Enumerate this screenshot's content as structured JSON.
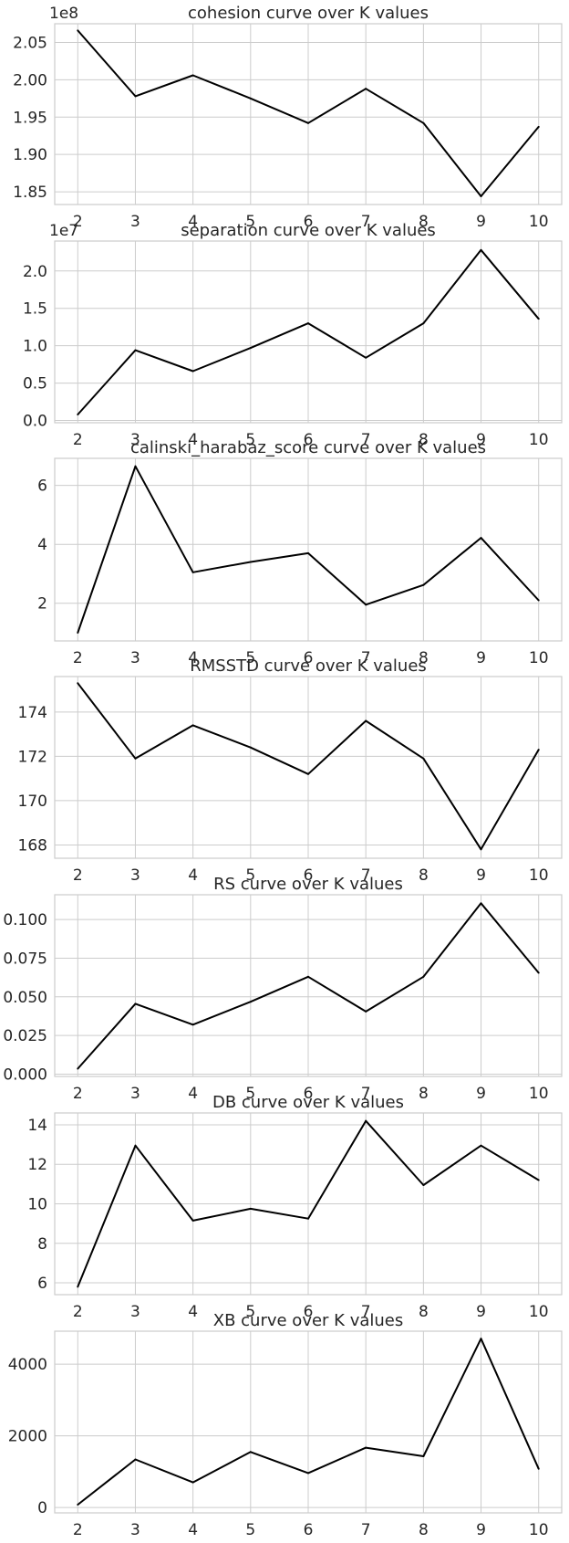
{
  "chart_data": [
    {
      "type": "line",
      "title": "cohesion curve over K values",
      "offset_label": "1e8",
      "x": [
        2,
        3,
        4,
        5,
        6,
        7,
        8,
        9,
        10
      ],
      "series": [
        {
          "values": [
            2.066,
            1.978,
            2.006,
            1.975,
            1.942,
            1.988,
            1.942,
            1.844,
            1.937
          ]
        }
      ],
      "xticks": [
        2,
        3,
        4,
        5,
        6,
        7,
        8,
        9,
        10
      ],
      "yticks": [
        1.85,
        1.9,
        1.95,
        2.0,
        2.05
      ],
      "ytick_labels": [
        "1.85",
        "1.90",
        "1.95",
        "2.00",
        "2.05"
      ],
      "ylim": [
        1.833,
        2.075
      ],
      "xlim": [
        1.6,
        10.4
      ],
      "grid": true
    },
    {
      "type": "line",
      "title": "separation curve over K values",
      "offset_label": "1e7",
      "x": [
        2,
        3,
        4,
        5,
        6,
        7,
        8,
        9,
        10
      ],
      "series": [
        {
          "values": [
            0.08,
            0.94,
            0.66,
            0.97,
            1.3,
            0.84,
            1.3,
            2.28,
            1.36
          ]
        }
      ],
      "xticks": [
        2,
        3,
        4,
        5,
        6,
        7,
        8,
        9,
        10
      ],
      "yticks": [
        0.0,
        0.5,
        1.0,
        1.5,
        2.0
      ],
      "ytick_labels": [
        "0.0",
        "0.5",
        "1.0",
        "1.5",
        "2.0"
      ],
      "ylim": [
        -0.03,
        2.4
      ],
      "xlim": [
        1.6,
        10.4
      ],
      "grid": true
    },
    {
      "type": "line",
      "title": "calinski_harabaz_score curve over K values",
      "offset_label": "",
      "x": [
        2,
        3,
        4,
        5,
        6,
        7,
        8,
        9,
        10
      ],
      "series": [
        {
          "values": [
            1.0,
            6.65,
            3.05,
            3.4,
            3.7,
            1.95,
            2.62,
            4.22,
            2.1
          ]
        }
      ],
      "xticks": [
        2,
        3,
        4,
        5,
        6,
        7,
        8,
        9,
        10
      ],
      "yticks": [
        2,
        4,
        6
      ],
      "ytick_labels": [
        "2",
        "4",
        "6"
      ],
      "ylim": [
        0.72,
        6.92
      ],
      "xlim": [
        1.6,
        10.4
      ],
      "grid": true
    },
    {
      "type": "line",
      "title": "RMSSTD curve over K values",
      "offset_label": "",
      "x": [
        2,
        3,
        4,
        5,
        6,
        7,
        8,
        9,
        10
      ],
      "series": [
        {
          "values": [
            175.3,
            171.9,
            173.4,
            172.4,
            171.2,
            173.6,
            171.9,
            167.8,
            172.3
          ]
        }
      ],
      "xticks": [
        2,
        3,
        4,
        5,
        6,
        7,
        8,
        9,
        10
      ],
      "yticks": [
        168,
        170,
        172,
        174
      ],
      "ytick_labels": [
        "168",
        "170",
        "172",
        "174"
      ],
      "ylim": [
        167.4,
        175.6
      ],
      "xlim": [
        1.6,
        10.4
      ],
      "grid": true
    },
    {
      "type": "line",
      "title": "RS curve over K values",
      "offset_label": "",
      "x": [
        2,
        3,
        4,
        5,
        6,
        7,
        8,
        9,
        10
      ],
      "series": [
        {
          "values": [
            0.0035,
            0.0455,
            0.032,
            0.0468,
            0.063,
            0.0405,
            0.063,
            0.1105,
            0.0655
          ]
        }
      ],
      "xticks": [
        2,
        3,
        4,
        5,
        6,
        7,
        8,
        9,
        10
      ],
      "yticks": [
        0.0,
        0.025,
        0.05,
        0.075,
        0.1
      ],
      "ytick_labels": [
        "0.000",
        "0.025",
        "0.050",
        "0.075",
        "0.100"
      ],
      "ylim": [
        -0.0015,
        0.116
      ],
      "xlim": [
        1.6,
        10.4
      ],
      "grid": true
    },
    {
      "type": "line",
      "title": "DB curve over K values",
      "offset_label": "",
      "x": [
        2,
        3,
        4,
        5,
        6,
        7,
        8,
        9,
        10
      ],
      "series": [
        {
          "values": [
            5.8,
            12.95,
            9.15,
            9.75,
            9.25,
            14.2,
            10.95,
            12.95,
            11.2
          ]
        }
      ],
      "xticks": [
        2,
        3,
        4,
        5,
        6,
        7,
        8,
        9,
        10
      ],
      "yticks": [
        6,
        8,
        10,
        12,
        14
      ],
      "ytick_labels": [
        "6",
        "8",
        "10",
        "12",
        "14"
      ],
      "ylim": [
        5.4,
        14.6
      ],
      "xlim": [
        1.6,
        10.4
      ],
      "grid": true
    },
    {
      "type": "line",
      "title": "XB curve over K values",
      "offset_label": "",
      "x": [
        2,
        3,
        4,
        5,
        6,
        7,
        8,
        9,
        10
      ],
      "series": [
        {
          "values": [
            80,
            1340,
            700,
            1550,
            960,
            1670,
            1430,
            4710,
            1080
          ]
        }
      ],
      "xticks": [
        2,
        3,
        4,
        5,
        6,
        7,
        8,
        9,
        10
      ],
      "yticks": [
        0,
        2000,
        4000
      ],
      "ytick_labels": [
        "0",
        "2000",
        "4000"
      ],
      "ylim": [
        -150,
        4920
      ],
      "xlim": [
        1.6,
        10.4
      ],
      "grid": true
    }
  ]
}
